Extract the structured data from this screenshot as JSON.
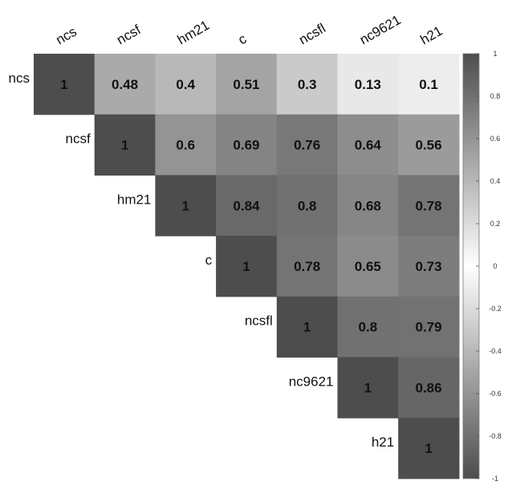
{
  "chart_data": {
    "type": "heatmap",
    "variables": [
      "ncs",
      "ncsf",
      "hm21",
      "c",
      "ncsfl",
      "nc9621",
      "h21"
    ],
    "matrix": [
      [
        1,
        0.48,
        0.4,
        0.51,
        0.3,
        0.13,
        0.1
      ],
      [
        null,
        1,
        0.6,
        0.69,
        0.76,
        0.64,
        0.56
      ],
      [
        null,
        null,
        1,
        0.84,
        0.8,
        0.68,
        0.78
      ],
      [
        null,
        null,
        null,
        1,
        0.78,
        0.65,
        0.73
      ],
      [
        null,
        null,
        null,
        null,
        1,
        0.8,
        0.79
      ],
      [
        null,
        null,
        null,
        null,
        null,
        1,
        0.86
      ],
      [
        null,
        null,
        null,
        null,
        null,
        null,
        1
      ]
    ],
    "layout": "upper-triangle",
    "color_scale": {
      "range": [
        -1,
        1
      ],
      "ticks": [
        1,
        0.8,
        0.6,
        0.4,
        0.2,
        0,
        -0.2,
        -0.4,
        -0.6,
        -0.8,
        -1
      ],
      "tick_labels": [
        "1",
        "0.8",
        "0.6",
        "0.4",
        "0.2",
        "0",
        "-0.2",
        "-0.4",
        "-0.6",
        "-0.8",
        "-1"
      ],
      "color_high": "#4d4d4d",
      "color_mid": "#ffffff",
      "color_low": "#4d4d4d"
    },
    "legend_position": "right",
    "title": "",
    "xlabel": "",
    "ylabel": ""
  }
}
